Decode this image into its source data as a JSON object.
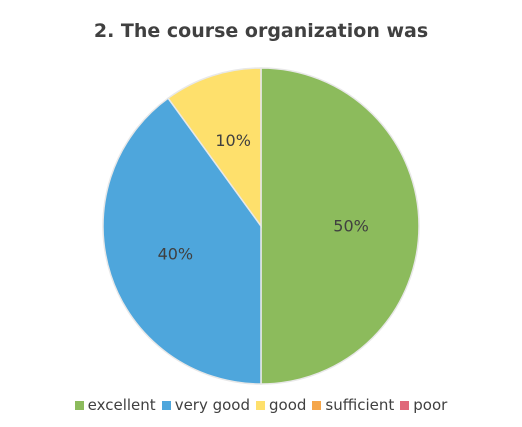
{
  "chart_data": {
    "type": "pie",
    "title": "2. The course organization was",
    "categories": [
      "excellent",
      "very good",
      "good",
      "sufficient",
      "poor"
    ],
    "values": [
      50,
      40,
      10,
      0,
      0
    ],
    "data_labels": [
      "50%",
      "40%",
      "10%",
      "",
      ""
    ],
    "colors": [
      "#8cbb5c",
      "#4ea6dc",
      "#fee06c",
      "#f5a64a",
      "#e0687a"
    ],
    "legend_position": "bottom"
  }
}
